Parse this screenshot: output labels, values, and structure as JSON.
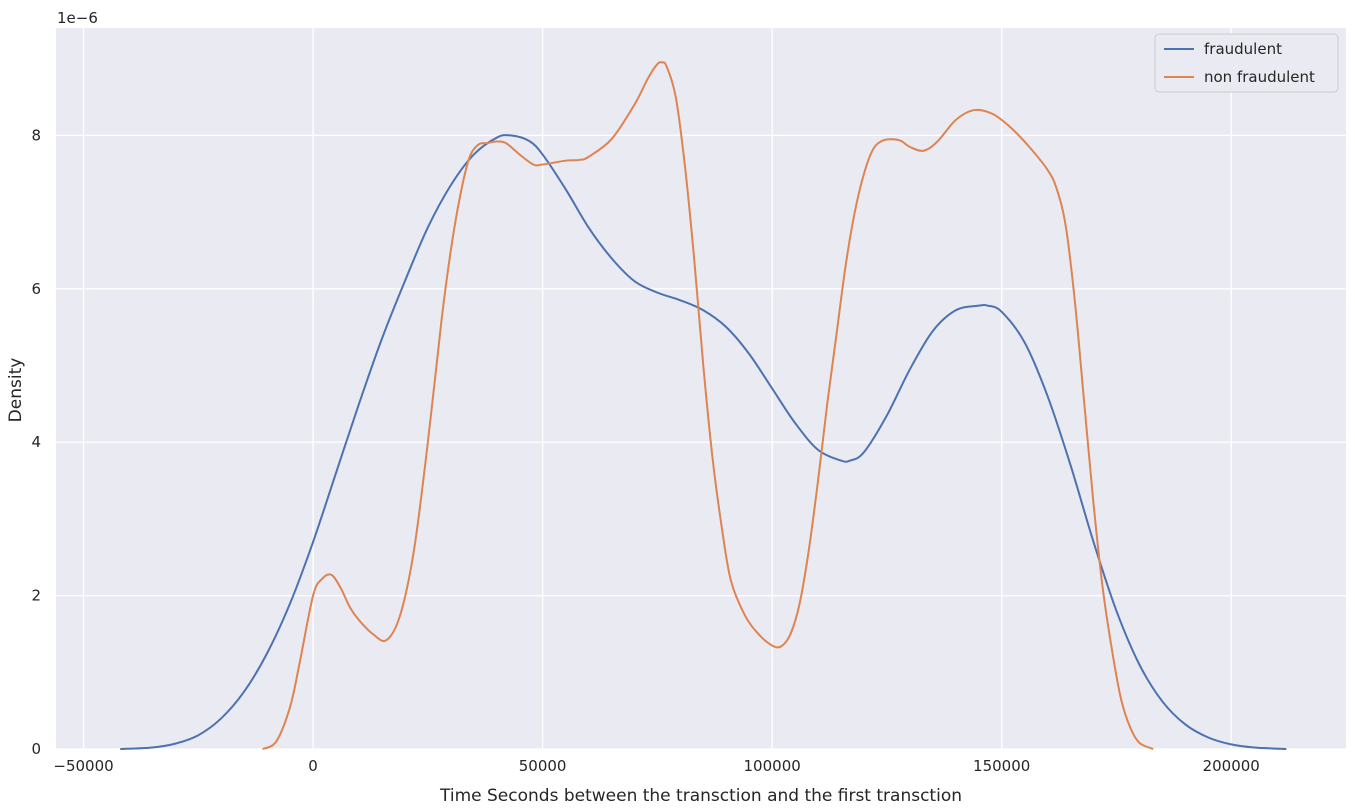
{
  "chart_data": {
    "type": "line",
    "title": "",
    "xlabel": "Time Seconds between the transction and the first transction",
    "ylabel": "Density",
    "y_offset_label": "1e−6",
    "y_scale_factor": 1e-06,
    "xlim": [
      -56000,
      225000
    ],
    "ylim": [
      0,
      9.4
    ],
    "x_ticks": [
      -50000,
      0,
      50000,
      100000,
      150000,
      200000
    ],
    "x_tick_labels": [
      "−50000",
      "0",
      "50000",
      "100000",
      "150000",
      "200000"
    ],
    "y_ticks": [
      0,
      2,
      4,
      6,
      8
    ],
    "y_tick_labels": [
      "0",
      "2",
      "4",
      "6",
      "8"
    ],
    "grid": true,
    "legend_position": "top-right",
    "colors": {
      "background": "#eaeaf2",
      "grid": "#ffffff",
      "text": "#262626"
    },
    "series": [
      {
        "name": "fraudulent",
        "color": "#4c72b0",
        "x": [
          -42000,
          -35000,
          -30000,
          -25000,
          -20000,
          -15000,
          -10000,
          -5000,
          0,
          5000,
          10000,
          15000,
          20000,
          25000,
          30000,
          35000,
          40000,
          43000,
          47000,
          50000,
          55000,
          60000,
          65000,
          70000,
          75000,
          80000,
          85000,
          90000,
          95000,
          100000,
          105000,
          110000,
          115000,
          117000,
          120000,
          125000,
          130000,
          135000,
          140000,
          145000,
          147000,
          150000,
          155000,
          160000,
          165000,
          170000,
          175000,
          180000,
          185000,
          190000,
          195000,
          200000,
          205000,
          212000
        ],
        "y": [
          0.0,
          0.02,
          0.07,
          0.18,
          0.4,
          0.75,
          1.25,
          1.9,
          2.7,
          3.6,
          4.5,
          5.35,
          6.1,
          6.8,
          7.35,
          7.75,
          7.97,
          8.0,
          7.93,
          7.75,
          7.3,
          6.8,
          6.4,
          6.1,
          5.95,
          5.85,
          5.72,
          5.5,
          5.15,
          4.7,
          4.25,
          3.9,
          3.76,
          3.76,
          3.87,
          4.35,
          4.95,
          5.45,
          5.72,
          5.78,
          5.78,
          5.7,
          5.3,
          4.6,
          3.7,
          2.7,
          1.8,
          1.1,
          0.62,
          0.32,
          0.15,
          0.06,
          0.02,
          0.0
        ]
      },
      {
        "name": "non fraudulent",
        "color": "#dd8452",
        "x": [
          -11000,
          -8000,
          -5000,
          -3000,
          0,
          2000,
          4000,
          6000,
          8000,
          10000,
          13000,
          16000,
          19000,
          22000,
          25000,
          28000,
          30000,
          32000,
          34000,
          36000,
          38000,
          40000,
          42000,
          45000,
          48000,
          50000,
          55000,
          58000,
          60000,
          65000,
          70000,
          73000,
          75000,
          76000,
          77000,
          79000,
          81000,
          83000,
          85000,
          87000,
          89000,
          91000,
          94000,
          97000,
          100000,
          102000,
          104000,
          106000,
          108000,
          110000,
          112000,
          114000,
          116000,
          118000,
          120000,
          122000,
          124000,
          126000,
          128000,
          130000,
          133000,
          136000,
          140000,
          144000,
          148000,
          152000,
          156000,
          160000,
          162000,
          164000,
          166000,
          168000,
          170000,
          172000,
          174000,
          176000,
          178000,
          180000,
          183000
        ],
        "y": [
          0.0,
          0.1,
          0.55,
          1.1,
          2.0,
          2.22,
          2.27,
          2.1,
          1.85,
          1.68,
          1.5,
          1.42,
          1.75,
          2.6,
          4.0,
          5.6,
          6.5,
          7.2,
          7.7,
          7.88,
          7.9,
          7.92,
          7.9,
          7.75,
          7.62,
          7.62,
          7.67,
          7.68,
          7.72,
          7.95,
          8.4,
          8.75,
          8.93,
          8.95,
          8.9,
          8.5,
          7.6,
          6.4,
          5.0,
          3.8,
          2.9,
          2.2,
          1.75,
          1.5,
          1.35,
          1.34,
          1.5,
          1.9,
          2.6,
          3.5,
          4.5,
          5.4,
          6.3,
          7.0,
          7.5,
          7.82,
          7.93,
          7.95,
          7.93,
          7.85,
          7.8,
          7.92,
          8.2,
          8.33,
          8.28,
          8.1,
          7.85,
          7.55,
          7.3,
          6.8,
          5.8,
          4.5,
          3.2,
          2.1,
          1.3,
          0.65,
          0.28,
          0.08,
          0.0
        ]
      }
    ]
  }
}
